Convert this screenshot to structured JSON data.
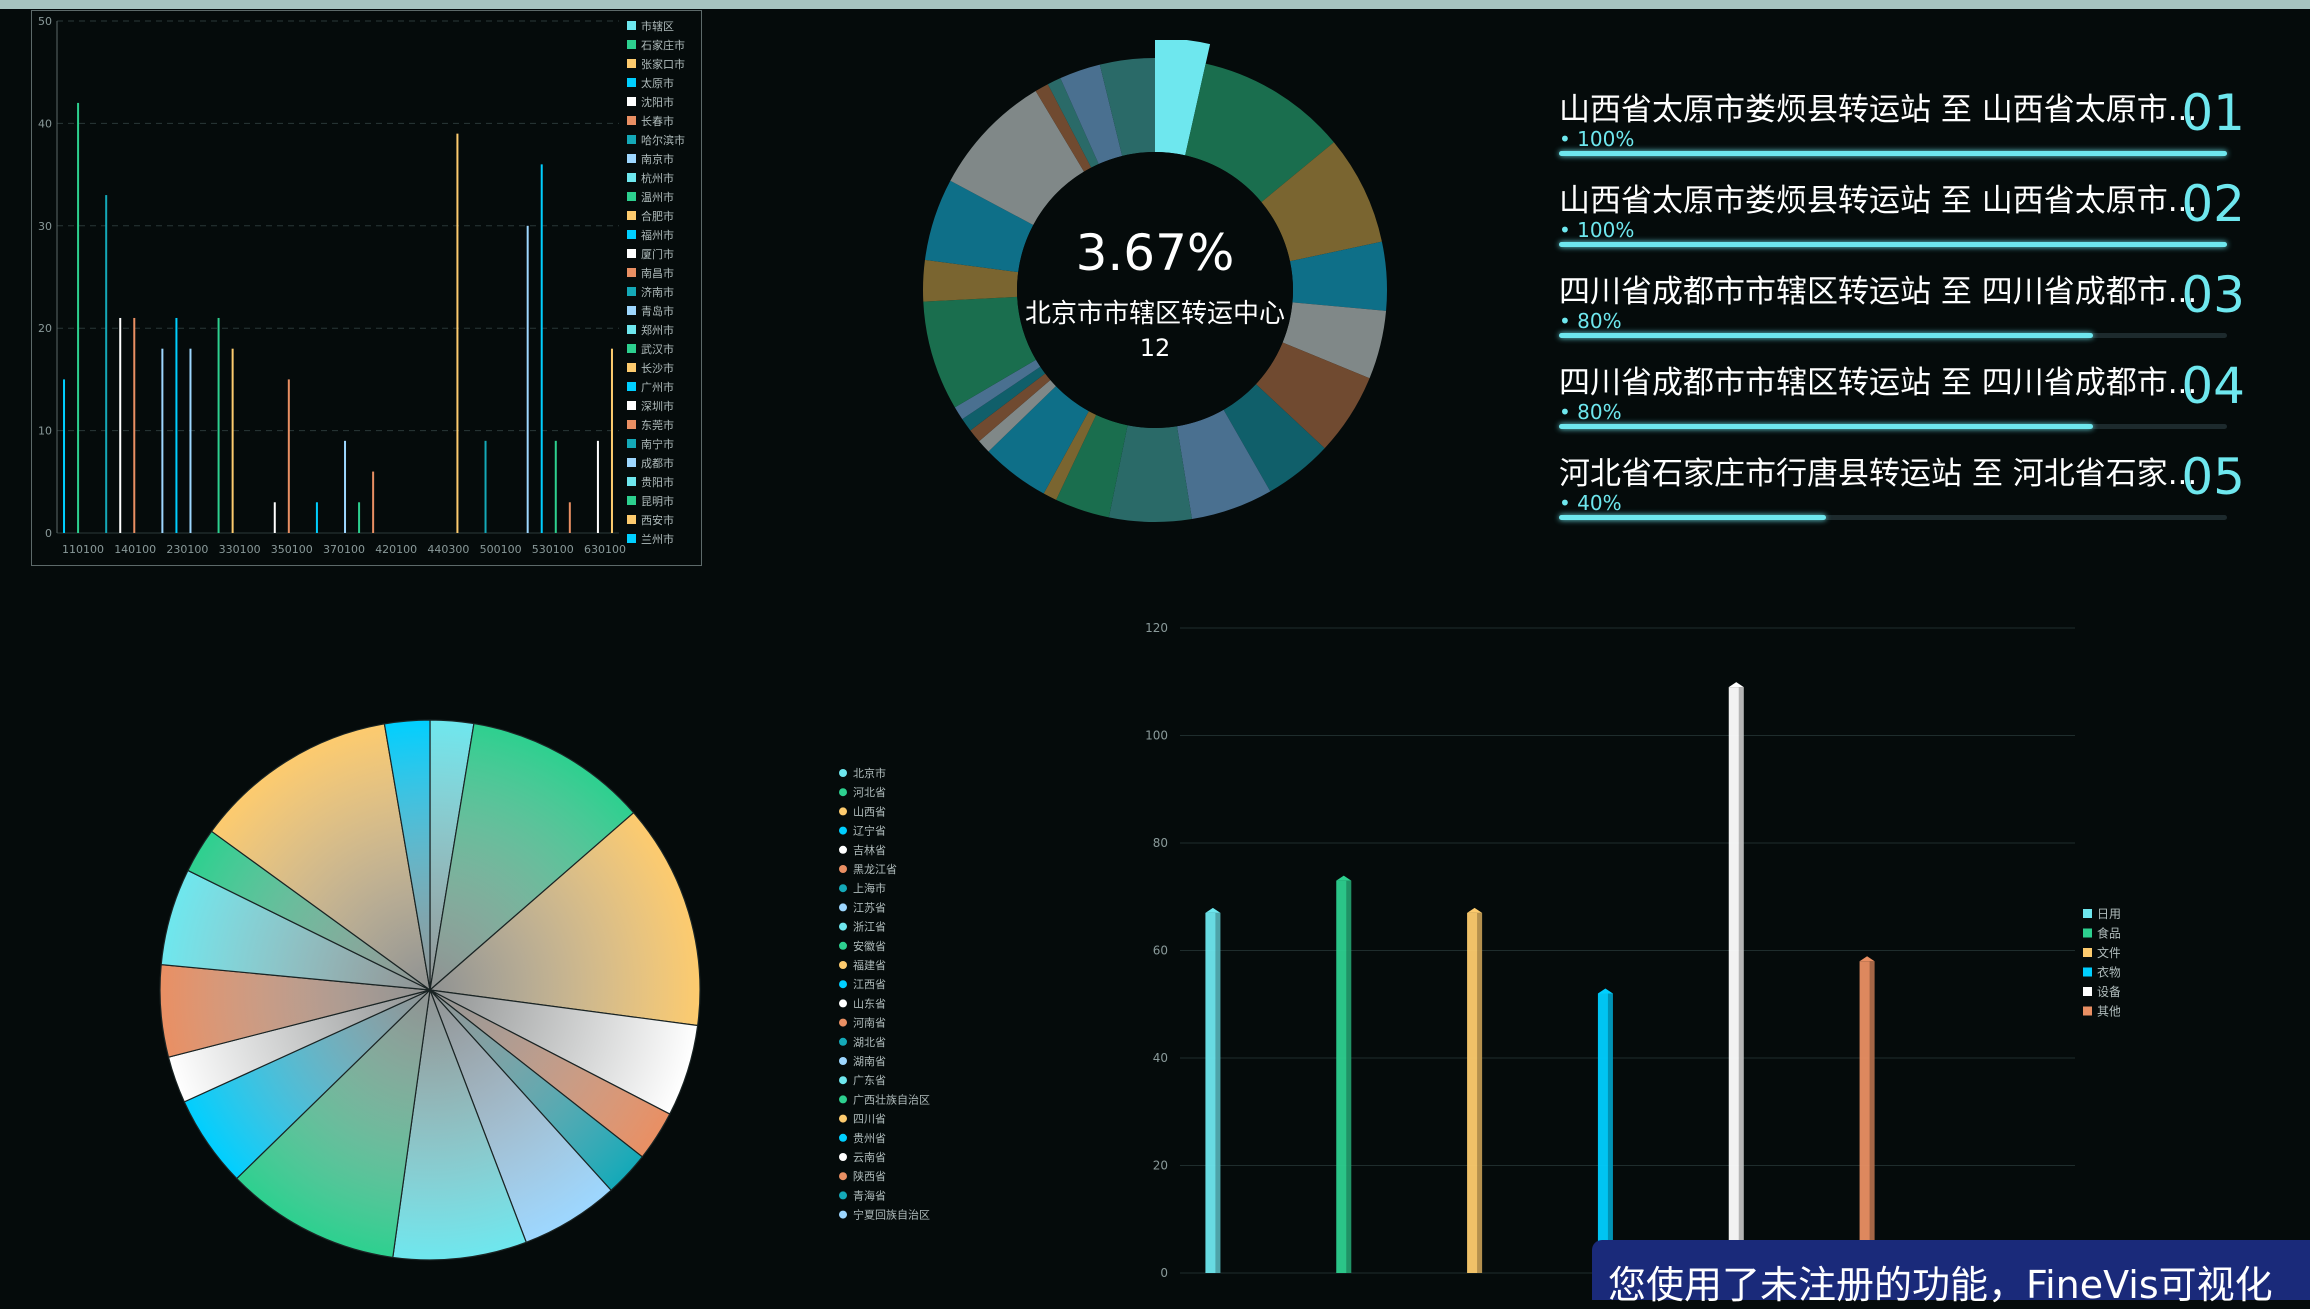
{
  "notice": "您使用了未注册的功能，FineVis可视化",
  "ranking": [
    {
      "title": "山西省太原市娄烦县转运站 至 山西省太原市...",
      "num": "01",
      "pct_label": "100%",
      "pct": 1.0
    },
    {
      "title": "山西省太原市娄烦县转运站 至 山西省太原市...",
      "num": "02",
      "pct_label": "100%",
      "pct": 1.0
    },
    {
      "title": "四川省成都市市辖区转运站 至 四川省成都市...",
      "num": "03",
      "pct_label": "80%",
      "pct": 0.8
    },
    {
      "title": "四川省成都市市辖区转运站 至 四川省成都市...",
      "num": "04",
      "pct_label": "80%",
      "pct": 0.8
    },
    {
      "title": "河北省石家庄市行唐县转运站 至 河北省石家...",
      "num": "05",
      "pct_label": "40%",
      "pct": 0.4
    }
  ],
  "colors": [
    "#6ee7ee",
    "#2dd08f",
    "#fdcb6e",
    "#00cfff",
    "#ffffff",
    "#e98f63",
    "#14a9b8",
    "#9dd7ff"
  ],
  "chart_data": [
    {
      "type": "bar",
      "ylim": [
        0,
        50
      ],
      "yticks": [
        0,
        10,
        20,
        30,
        40,
        50
      ],
      "xtick_labels": [
        "110100",
        "140100",
        "230100",
        "330100",
        "350100",
        "370100",
        "420100",
        "440300",
        "500100",
        "530100",
        "630100"
      ],
      "legend": [
        "市辖区",
        "石家庄市",
        "张家口市",
        "太原市",
        "沈阳市",
        "长春市",
        "哈尔滨市",
        "南京市",
        "杭州市",
        "温州市",
        "合肥市",
        "福州市",
        "厦门市",
        "南昌市",
        "济南市",
        "青岛市",
        "郑州市",
        "武汉市",
        "长沙市",
        "广州市",
        "深圳市",
        "东莞市",
        "南宁市",
        "成都市",
        "贵阳市",
        "昆明市",
        "西安市",
        "兰州市"
      ],
      "values": [
        15,
        42,
        0,
        33,
        21,
        21,
        0,
        18,
        21,
        18,
        0,
        21,
        18,
        0,
        0,
        3,
        15,
        0,
        3,
        0,
        9,
        3,
        6,
        0,
        0,
        0,
        0,
        0,
        39,
        0,
        9,
        0,
        0,
        30,
        36,
        9,
        3,
        0,
        9,
        18
      ],
      "series_index": [
        3,
        1,
        0,
        6,
        4,
        5,
        0,
        7,
        3,
        7,
        0,
        1,
        2,
        0,
        0,
        4,
        5,
        0,
        3,
        0,
        7,
        1,
        5,
        0,
        0,
        0,
        0,
        0,
        2,
        0,
        6,
        0,
        0,
        7,
        3,
        1,
        5,
        0,
        4,
        2
      ]
    },
    {
      "type": "pie",
      "subtype": "donut",
      "center_value": "3.67%",
      "center_label": "北京市市辖区转运中心",
      "center_count": "12",
      "slices": [
        {
          "value": 3.67,
          "color": "#6ee7ee"
        },
        {
          "value": 11,
          "color": "#1a6e4e"
        },
        {
          "value": 8,
          "color": "#7a6530"
        },
        {
          "value": 5,
          "color": "#0e6f88"
        },
        {
          "value": 5,
          "color": "#808888"
        },
        {
          "value": 6,
          "color": "#704a30"
        },
        {
          "value": 5,
          "color": "#105f6a"
        },
        {
          "value": 6,
          "color": "#4a7090"
        },
        {
          "value": 6,
          "color": "#2a6a68"
        },
        {
          "value": 4,
          "color": "#1a6e4e"
        },
        {
          "value": 1,
          "color": "#7a6530"
        },
        {
          "value": 5,
          "color": "#0e6f88"
        },
        {
          "value": 1,
          "color": "#808888"
        },
        {
          "value": 1,
          "color": "#704a30"
        },
        {
          "value": 1,
          "color": "#105f6a"
        },
        {
          "value": 1,
          "color": "#4a7090"
        },
        {
          "value": 8,
          "color": "#1a6e4e"
        },
        {
          "value": 3,
          "color": "#7a6530"
        },
        {
          "value": 6,
          "color": "#0e6f88"
        },
        {
          "value": 9,
          "color": "#808888"
        },
        {
          "value": 1,
          "color": "#704a30"
        },
        {
          "value": 1,
          "color": "#2a6a68"
        },
        {
          "value": 3,
          "color": "#4a7090"
        },
        {
          "value": 4,
          "color": "#2a6a68"
        }
      ]
    },
    {
      "type": "pie",
      "legend": [
        "北京市",
        "河北省",
        "山西省",
        "辽宁省",
        "吉林省",
        "黑龙江省",
        "上海市",
        "江苏省",
        "浙江省",
        "安徽省",
        "福建省",
        "江西省",
        "山东省",
        "河南省",
        "湖北省",
        "湖南省",
        "广东省",
        "广西壮族自治区",
        "四川省",
        "贵州省",
        "云南省",
        "陕西省",
        "青海省",
        "宁夏回族自治区"
      ],
      "slices": [
        {
          "value": 2.6,
          "color": "#6ee7ee"
        },
        {
          "value": 11,
          "color": "#2dd08f"
        },
        {
          "value": 13.5,
          "color": "#fdcb6e"
        },
        {
          "value": 5.5,
          "color": "#ffffff"
        },
        {
          "value": 3,
          "color": "#e98f63"
        },
        {
          "value": 2.7,
          "color": "#14a9b8"
        },
        {
          "value": 5.9,
          "color": "#9dd7ff"
        },
        {
          "value": 8,
          "color": "#6ee7ee"
        },
        {
          "value": 10.5,
          "color": "#2dd08f"
        },
        {
          "value": 5.5,
          "color": "#00cfff"
        },
        {
          "value": 2.8,
          "color": "#ffffff"
        },
        {
          "value": 5.5,
          "color": "#e98f63"
        },
        {
          "value": 5.8,
          "color": "#6ee7ee"
        },
        {
          "value": 2.7,
          "color": "#2dd08f"
        },
        {
          "value": 12.3,
          "color": "#fdcb6e"
        },
        {
          "value": 2.7,
          "color": "#00cfff"
        }
      ]
    },
    {
      "type": "bar",
      "categories": [
        "日用品",
        "食品",
        "文件",
        "衣物",
        "设备",
        "其他"
      ],
      "values": [
        67,
        73,
        67,
        52,
        109,
        58
      ],
      "ylim": [
        0,
        120
      ],
      "yticks": [
        0,
        20,
        40,
        60,
        80,
        100,
        120
      ],
      "legend": [
        "日用品",
        "食品",
        "文件",
        "衣物",
        "设备",
        "其他"
      ]
    }
  ]
}
